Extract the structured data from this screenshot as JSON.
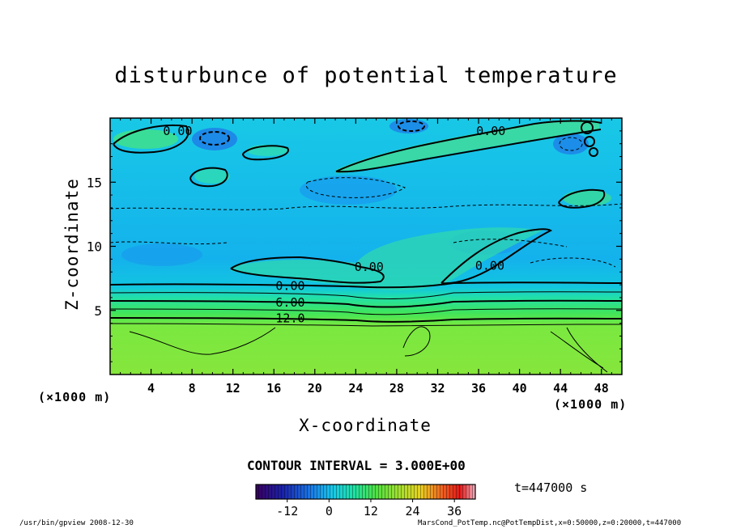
{
  "chart_data": {
    "type": "heatmap",
    "title": "disturbunce of potential temperature",
    "xlabel": "X-coordinate",
    "ylabel": "Z-coordinate",
    "x_unit": "(×1000 m)",
    "z_unit": "(×1000 m)",
    "xlim": [
      0,
      50
    ],
    "ylim": [
      0,
      20
    ],
    "x_ticks": [
      4,
      8,
      12,
      16,
      20,
      24,
      28,
      32,
      36,
      40,
      44,
      48
    ],
    "y_ticks": [
      5,
      10,
      15
    ],
    "contour_interval": "CONTOUR INTERVAL = 3.000E+00",
    "contour_labels": [
      {
        "x": 6.6,
        "z": 19.0,
        "text": "0.00"
      },
      {
        "x": 37.2,
        "z": 19.0,
        "text": "0.00"
      },
      {
        "x": 25.3,
        "z": 8.4,
        "text": "0.00"
      },
      {
        "x": 37.1,
        "z": 8.5,
        "text": "0.00"
      },
      {
        "x": 17.6,
        "z": 6.9,
        "text": "0.00"
      },
      {
        "x": 17.6,
        "z": 5.6,
        "text": "6.00"
      },
      {
        "x": 17.6,
        "z": 4.4,
        "text": "12.0"
      }
    ],
    "colorbar": {
      "range": [
        -21,
        42
      ],
      "ticks": [
        -12,
        0,
        12,
        24,
        36
      ],
      "colormap": "rainbow"
    },
    "time": "t=447000 s",
    "grid": false
  },
  "footer": {
    "left": "/usr/bin/gpview   2008-12-30",
    "right": "MarsCond_PotTemp.nc@PotTempDist,x=0:50000,z=0:20000,t=447000"
  }
}
